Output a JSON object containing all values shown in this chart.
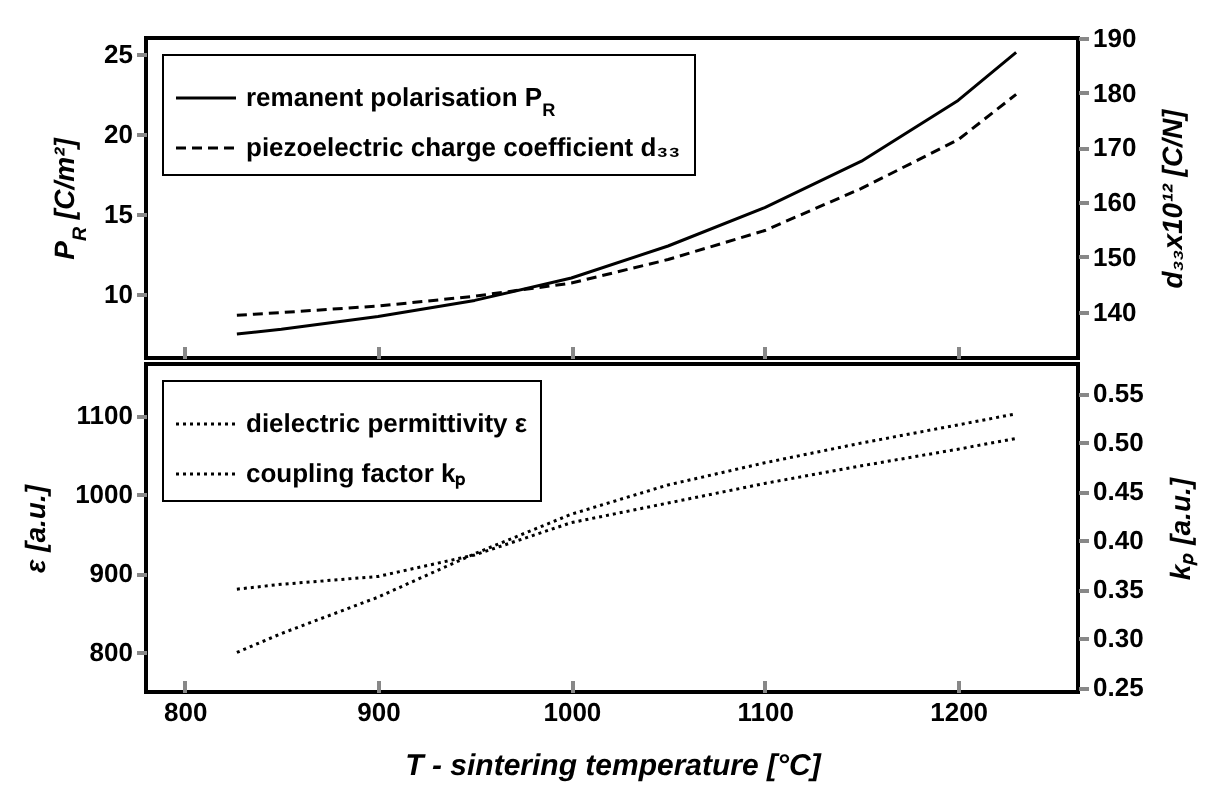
{
  "chart_data": [
    {
      "type": "line",
      "x": [
        827,
        850,
        900,
        950,
        1000,
        1050,
        1100,
        1150,
        1200,
        1230
      ],
      "xlim": [
        780,
        1262
      ],
      "xticks": [
        800,
        900,
        1000,
        1100,
        1200
      ],
      "ylim": [
        6,
        26
      ],
      "yticks": [
        10,
        15,
        20,
        25
      ],
      "y2lim": [
        131.5,
        190
      ],
      "y2ticks": [
        140,
        150,
        160,
        170,
        180,
        190
      ],
      "ylabel": "P$_{R}$  [C/m²]",
      "y2label": "d₃₃x10¹²   [C/N]",
      "legend": "top left",
      "tick_labels": "y",
      "series": [
        {
          "name": "remanent polarisation P$_{R}$",
          "color": "#000000",
          "line_style": "solid",
          "values": [
            7.5,
            7.8,
            8.6,
            9.6,
            11.0,
            13.0,
            15.4,
            18.3,
            22.1,
            25.1
          ]
        },
        {
          "name": "piezoelectric charge coefficient d₃₃",
          "color": "#000000",
          "line_style": "dashed",
          "axis": "y2",
          "values": [
            139.3,
            139.8,
            141,
            142.8,
            145.2,
            149.5,
            154.8,
            162.5,
            171.4,
            179.7
          ]
        }
      ]
    },
    {
      "type": "line",
      "x": [
        827,
        850,
        900,
        950,
        1000,
        1050,
        1100,
        1150,
        1200,
        1230
      ],
      "xlim": [
        780,
        1262
      ],
      "xticks": [
        800,
        900,
        1000,
        1100,
        1200
      ],
      "ylim": [
        750,
        1165
      ],
      "yticks": [
        800,
        900,
        1000,
        1100
      ],
      "y2lim": [
        0.245,
        0.58
      ],
      "y2ticks": [
        0.25,
        {
          "value": 0.3,
          "label": "0.30"
        },
        0.35,
        {
          "value": 0.4,
          "label": "0.40"
        },
        0.45,
        {
          "value": 0.5,
          "label": "0.50"
        },
        0.55
      ],
      "xlabel": "T - sintering temperature    [°C]",
      "ylabel": "ε    [a.u.]",
      "y2label": "kₚ    [a.u.]",
      "legend": "top left",
      "series": [
        {
          "name": "dielectric permittivity ε",
          "color": "#000000",
          "line_style": "dotted",
          "values": [
            800,
            824,
            870,
            925,
            975,
            1012,
            1040,
            1065,
            1088,
            1102
          ]
        },
        {
          "name": "coupling factor kₚ",
          "color": "#000000",
          "line_style": "dotted",
          "axis": "y2",
          "values": [
            0.35,
            0.355,
            0.363,
            0.385,
            0.418,
            0.438,
            0.458,
            0.476,
            0.493,
            0.504
          ]
        }
      ]
    }
  ]
}
